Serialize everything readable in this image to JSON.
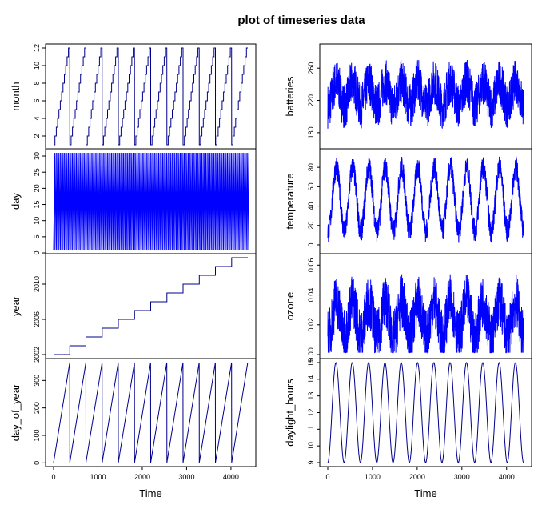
{
  "title": "plot of timeseries data",
  "colors": {
    "series": "#0000ff",
    "series_dark": "#00008b",
    "axis": "#000000"
  },
  "chart_data": [
    {
      "type": "line",
      "ylabel": "month",
      "xlabel": "",
      "xlim": [
        0,
        4380
      ],
      "ylim": [
        1,
        12
      ],
      "yticks": [
        2,
        4,
        6,
        8,
        10,
        12
      ],
      "yticklabels": [
        "2",
        "4",
        "6",
        "8",
        "10",
        "12"
      ],
      "x": [
        0,
        365,
        730,
        1095,
        1460,
        1825,
        2190,
        2555,
        2920,
        3285,
        3650,
        4015,
        4380
      ],
      "values": [
        1,
        12,
        12,
        12,
        12,
        12,
        12,
        12,
        12,
        12,
        12,
        12,
        12
      ],
      "pattern": "sawtooth-steps",
      "cycle_length": 365,
      "color": "#00008b"
    },
    {
      "type": "line",
      "ylabel": "day",
      "xlabel": "",
      "xlim": [
        0,
        4380
      ],
      "ylim": [
        1,
        31
      ],
      "yticks": [
        0,
        5,
        10,
        15,
        20,
        25,
        30
      ],
      "yticklabels": [
        "0",
        "5",
        "10",
        "15",
        "20",
        "25",
        "30"
      ],
      "pattern": "monthly-sawtooth",
      "cycle_length": 30.4,
      "color": "#0000ff"
    },
    {
      "type": "line",
      "ylabel": "year",
      "xlabel": "",
      "xlim": [
        0,
        4380
      ],
      "ylim": [
        2002,
        2013
      ],
      "yticks": [
        2002,
        2006,
        2010
      ],
      "yticklabels": [
        "2002",
        "2006",
        "2010"
      ],
      "x": [
        0,
        365,
        730,
        1095,
        1460,
        1825,
        2190,
        2555,
        2920,
        3285,
        3650,
        4015,
        4380
      ],
      "values": [
        2002,
        2003,
        2004,
        2005,
        2006,
        2007,
        2008,
        2009,
        2010,
        2011,
        2012,
        2013,
        2013
      ],
      "pattern": "steps",
      "color": "#00008b"
    },
    {
      "type": "line",
      "ylabel": "day_of_year",
      "xlabel": "Time",
      "xlim": [
        0,
        4380
      ],
      "ylim": [
        1,
        365
      ],
      "yticks": [
        0,
        100,
        200,
        300
      ],
      "yticklabels": [
        "0",
        "100",
        "200",
        "300"
      ],
      "xticks": [
        0,
        1000,
        2000,
        3000,
        4000
      ],
      "xticklabels": [
        "0",
        "1000",
        "2000",
        "3000",
        "4000"
      ],
      "pattern": "sawtooth",
      "cycle_length": 365,
      "color": "#00008b"
    },
    {
      "type": "line",
      "ylabel": "batteries",
      "xlabel": "",
      "xlim": [
        0,
        4380
      ],
      "ylim": [
        165,
        285
      ],
      "yticks": [
        180,
        220,
        260
      ],
      "yticklabels": [
        "180",
        "220",
        "260"
      ],
      "pattern": "noisy-seasonal",
      "mean": 228,
      "seasonal_amplitude": 15,
      "noise_amplitude": 28,
      "color": "#0000ff"
    },
    {
      "type": "line",
      "ylabel": "temperature",
      "xlabel": "",
      "xlim": [
        0,
        4380
      ],
      "ylim": [
        -5,
        95
      ],
      "yticks": [
        0,
        20,
        40,
        60,
        80
      ],
      "yticklabels": [
        "0",
        "20",
        "40",
        "60",
        "80"
      ],
      "pattern": "noisy-seasonal",
      "mean": 47,
      "seasonal_amplitude": 33,
      "noise_amplitude": 12,
      "color": "#0000ff"
    },
    {
      "type": "line",
      "ylabel": "ozone",
      "xlabel": "",
      "xlim": [
        0,
        4380
      ],
      "ylim": [
        0,
        0.065
      ],
      "yticks": [
        0,
        0.02,
        0.04,
        0.06
      ],
      "yticklabels": [
        "0.00",
        "0.02",
        "0.04",
        "0.06"
      ],
      "pattern": "noisy-seasonal",
      "mean": 0.024,
      "seasonal_amplitude": 0.012,
      "noise_amplitude": 0.018,
      "color": "#0000ff"
    },
    {
      "type": "line",
      "ylabel": "daylight_hours",
      "xlabel": "Time",
      "xlim": [
        0,
        4380
      ],
      "ylim": [
        9,
        15
      ],
      "yticks": [
        9,
        10,
        11,
        12,
        13,
        14,
        15
      ],
      "yticklabels": [
        "9",
        "10",
        "11",
        "12",
        "13",
        "14",
        "15"
      ],
      "xticks": [
        0,
        1000,
        2000,
        3000,
        4000
      ],
      "xticklabels": [
        "0",
        "1000",
        "2000",
        "3000",
        "4000"
      ],
      "pattern": "sinusoid",
      "mean": 12,
      "seasonal_amplitude": 3,
      "cycle_length": 365,
      "color": "#00008b"
    }
  ]
}
